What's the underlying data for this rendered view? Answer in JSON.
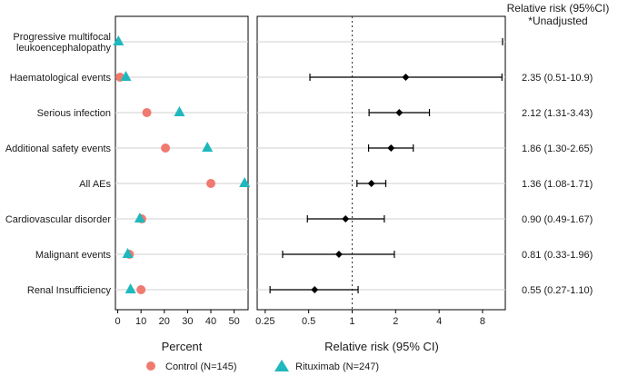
{
  "chart_data": [
    {
      "type": "scatter",
      "xlabel": "Percent",
      "xlim": [
        -1,
        56
      ],
      "xticks": [
        "0",
        "10",
        "20",
        "30",
        "40",
        "50"
      ],
      "categories": [
        "Progressive multifocal\nleukoencephalopathy",
        "Haematological events",
        "Serious infection",
        "Additional safety events",
        "All AEs",
        "Cardiovascular disorder",
        "Malignant events",
        "Renal Insufficiency"
      ],
      "series": [
        {
          "name": "Control (N=145)",
          "marker": "circle",
          "color": "#f07a70",
          "values": [
            null,
            1.0,
            12.5,
            20.5,
            40.0,
            10.3,
            5.0,
            10.0
          ]
        },
        {
          "name": "Rituximab (N=247)",
          "marker": "triangle",
          "color": "#1fb8bd",
          "values": [
            0.3,
            3.5,
            26.5,
            38.5,
            54.5,
            9.5,
            4.3,
            5.5
          ]
        }
      ]
    },
    {
      "type": "forest",
      "xlabel": "Relative risk (95% CI)",
      "scale": "log2",
      "xlim": [
        0.22,
        11.5
      ],
      "xticks": [
        {
          "value": 0.25,
          "label": "0.25"
        },
        {
          "value": 0.5,
          "label": "0.5"
        },
        {
          "value": 1,
          "label": "1"
        },
        {
          "value": 2,
          "label": "2"
        },
        {
          "value": 4,
          "label": "4"
        },
        {
          "value": 8,
          "label": "8"
        }
      ],
      "reference_line": 1,
      "header": [
        "Relative risk (95%CI)",
        "*Unadjusted"
      ],
      "rows": [
        {
          "category": "Progressive multifocal\nleukoencephalopathy",
          "rr": null,
          "lo": null,
          "hi": null,
          "open_right_marker": true,
          "label": ""
        },
        {
          "category": "Haematological events",
          "rr": 2.35,
          "lo": 0.51,
          "hi": 10.9,
          "label": "2.35 (0.51-10.9)"
        },
        {
          "category": "Serious infection",
          "rr": 2.12,
          "lo": 1.31,
          "hi": 3.43,
          "label": "2.12 (1.31-3.43)"
        },
        {
          "category": "Additional safety events",
          "rr": 1.86,
          "lo": 1.3,
          "hi": 2.65,
          "label": "1.86 (1.30-2.65)"
        },
        {
          "category": "All AEs",
          "rr": 1.36,
          "lo": 1.08,
          "hi": 1.71,
          "label": "1.36 (1.08-1.71)"
        },
        {
          "category": "Cardiovascular disorder",
          "rr": 0.9,
          "lo": 0.49,
          "hi": 1.67,
          "label": "0.90 (0.49-1.67)"
        },
        {
          "category": "Malignant events",
          "rr": 0.81,
          "lo": 0.33,
          "hi": 1.96,
          "label": "0.81 (0.33-1.96)"
        },
        {
          "category": "Renal Insufficiency",
          "rr": 0.55,
          "lo": 0.27,
          "hi": 1.1,
          "label": "0.55 (0.27-1.10)"
        }
      ]
    }
  ],
  "legend": {
    "position": "bottom",
    "items": [
      {
        "label": "Control (N=145)",
        "marker": "circle",
        "color": "#f07a70"
      },
      {
        "label": "Rituximab (N=247)",
        "marker": "triangle",
        "color": "#1fb8bd"
      }
    ]
  }
}
